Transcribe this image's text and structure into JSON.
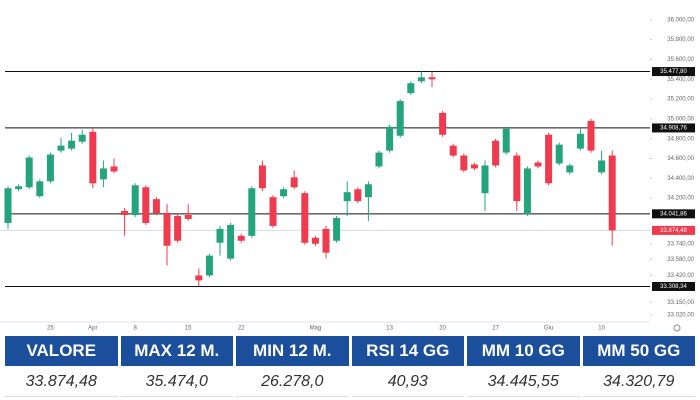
{
  "chart_data": {
    "type": "candlestick",
    "categories": [
      null,
      null,
      null,
      null,
      "25",
      null,
      null,
      null,
      "Apr",
      null,
      null,
      null,
      "8",
      null,
      null,
      null,
      null,
      "15",
      null,
      null,
      null,
      null,
      "22",
      null,
      null,
      null,
      null,
      null,
      null,
      "Mag",
      null,
      null,
      null,
      null,
      null,
      null,
      "13",
      null,
      null,
      null,
      null,
      "20",
      null,
      null,
      null,
      null,
      "27",
      null,
      null,
      null,
      null,
      "Giu",
      null,
      null,
      null,
      null,
      "10",
      null
    ],
    "open": [
      33950,
      34290,
      34310,
      34220,
      34370,
      34680,
      34700,
      34770,
      34870,
      34390,
      34520,
      34070,
      34030,
      34310,
      34190,
      34050,
      34020,
      34030,
      33420,
      33420,
      33750,
      33590,
      33820,
      33820,
      34530,
      34210,
      34220,
      34410,
      34250,
      33800,
      33890,
      33770,
      34170,
      34290,
      34210,
      34520,
      34680,
      34830,
      35260,
      35380,
      35420,
      35060,
      34730,
      34630,
      34540,
      34250,
      34780,
      34660,
      34630,
      34040,
      34560,
      34840,
      34550,
      34460,
      34700,
      34980,
      34460,
      34630
    ],
    "high": [
      34320,
      34340,
      34630,
      34390,
      34660,
      34810,
      34860,
      34890,
      34910,
      34580,
      34600,
      34100,
      34350,
      34330,
      34210,
      34140,
      34040,
      34140,
      33490,
      33640,
      33920,
      33950,
      33840,
      34320,
      34580,
      34230,
      34310,
      34480,
      34270,
      33820,
      33920,
      34020,
      34370,
      34310,
      34370,
      34680,
      34940,
      35200,
      35380,
      35480,
      35480,
      35080,
      34750,
      34650,
      34560,
      34580,
      34800,
      34920,
      34660,
      34520,
      34580,
      34860,
      34760,
      34550,
      34900,
      35000,
      34680,
      34680
    ],
    "low": [
      33890,
      34270,
      34290,
      34200,
      34350,
      34660,
      34680,
      34750,
      34300,
      34310,
      34450,
      33820,
      34010,
      33930,
      34030,
      33520,
      33750,
      33970,
      33310,
      33400,
      33620,
      33570,
      33750,
      33800,
      34270,
      33900,
      34200,
      34290,
      33730,
      33720,
      33590,
      33750,
      34020,
      34150,
      33970,
      34500,
      34660,
      34810,
      35240,
      35360,
      35320,
      34820,
      34610,
      34460,
      34480,
      34070,
      34510,
      34640,
      34070,
      34020,
      34500,
      34330,
      34530,
      34440,
      34680,
      34660,
      34440,
      33720
    ],
    "close": [
      34300,
      34320,
      34610,
      34370,
      34640,
      34730,
      34780,
      34840,
      34350,
      34500,
      34470,
      34030,
      34330,
      33950,
      34050,
      33720,
      33770,
      33990,
      33370,
      33620,
      33890,
      33930,
      33770,
      34300,
      34300,
      33920,
      34290,
      34310,
      33750,
      33740,
      33650,
      34000,
      34260,
      34170,
      34340,
      34660,
      34920,
      35180,
      35360,
      35420,
      35400,
      34840,
      34630,
      34480,
      34500,
      34530,
      34530,
      34900,
      34170,
      34500,
      34520,
      34350,
      34740,
      34530,
      34850,
      34680,
      34580,
      33874.48
    ],
    "up_color": "#23a47c",
    "down_color": "#f03a4e",
    "ylim": [
      32950,
      36200
    ],
    "yticks": [
      {
        "value": 36000,
        "label": "36.000,00"
      },
      {
        "value": 35800,
        "label": "35.800,00"
      },
      {
        "value": 35600,
        "label": "35.600,00"
      },
      {
        "value": 35400,
        "label": "35.400,00"
      },
      {
        "value": 35200,
        "label": "35.200,00"
      },
      {
        "value": 35000,
        "label": "35.000,00"
      },
      {
        "value": 34800,
        "label": "34.800,00"
      },
      {
        "value": 34600,
        "label": "34.600,00"
      },
      {
        "value": 34400,
        "label": "34.400,00"
      },
      {
        "value": 34200,
        "label": "34.200,00"
      },
      {
        "value": 33740,
        "label": "33.740,00"
      },
      {
        "value": 33580,
        "label": "33.580,00"
      },
      {
        "value": 33420,
        "label": "33.420,00"
      },
      {
        "value": 33150,
        "label": "33.150,00"
      },
      {
        "value": 33020,
        "label": "33.020,00"
      }
    ],
    "levels": [
      {
        "value": 35477.8,
        "label": "35.477,80"
      },
      {
        "value": 34908.76,
        "label": "34.908,76"
      },
      {
        "value": 34041.86,
        "label": "34.041,86"
      },
      {
        "value": 33308.34,
        "label": "33.308,34"
      }
    ],
    "last_price": {
      "value": 33874.48,
      "label": "33.874,48",
      "color": "#f03a4e"
    }
  },
  "table": {
    "header": [
      "VALORE",
      "MAX 12 M.",
      "MIN 12 M.",
      "RSI 14 GG",
      "MM 10 GG",
      "MM 50 GG"
    ],
    "rows": [
      [
        "33.874,48",
        "35.474,0",
        "26.278,0",
        "40,93",
        "34.445,55",
        "34.320,79"
      ]
    ]
  }
}
